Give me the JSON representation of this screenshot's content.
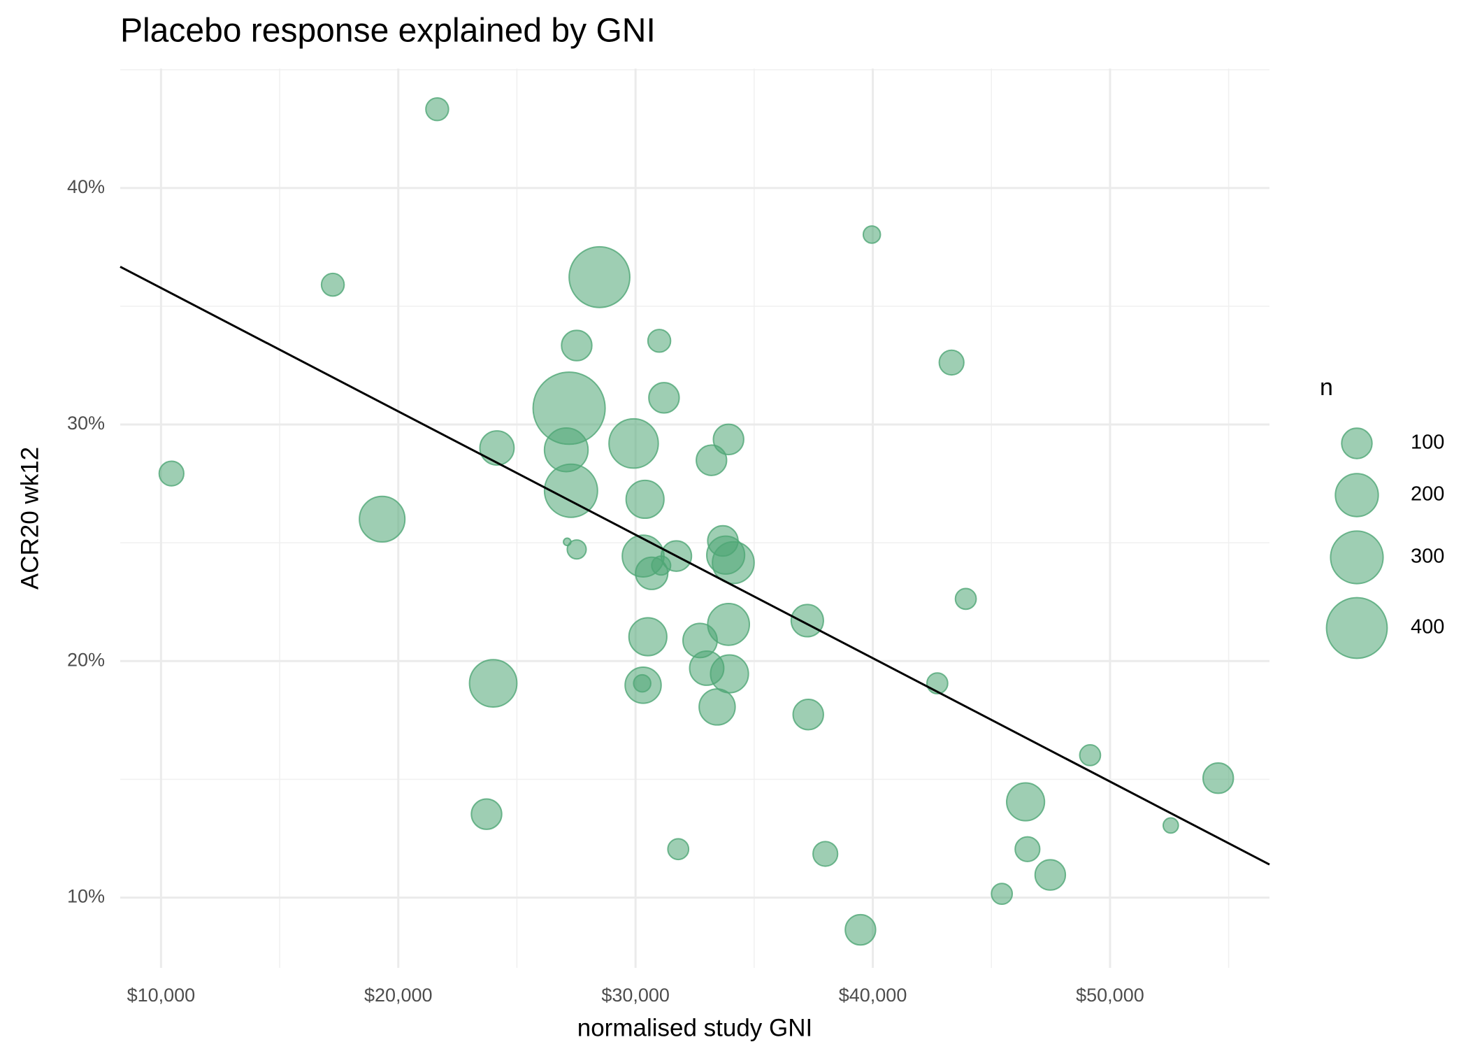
{
  "chart_data": {
    "type": "scatter",
    "title": "Placebo response explained by GNI",
    "x_label": "normalised study GNI",
    "y_label": "ACR20 wk12",
    "color": "#4fa675",
    "grid": true,
    "xlim": [
      8280,
      56720
    ],
    "ylim": [
      7.03,
      45.05
    ],
    "xticks": [
      {
        "value": 10000,
        "label": "$10,000"
      },
      {
        "value": 20000,
        "label": "$20,000"
      },
      {
        "value": 30000,
        "label": "$30,000"
      },
      {
        "value": 40000,
        "label": "$40,000"
      },
      {
        "value": 50000,
        "label": "$50,000"
      }
    ],
    "yticks": [
      {
        "value": 10,
        "label": "10%"
      },
      {
        "value": 20,
        "label": "20%"
      },
      {
        "value": 30,
        "label": "30%"
      },
      {
        "value": 40,
        "label": "40%"
      }
    ],
    "xminor_ticks": [
      15000,
      25000,
      35000,
      45000,
      55000
    ],
    "yminor_ticks": [
      15,
      25,
      35,
      45
    ],
    "x": [
      21640,
      17240,
      39960,
      28480,
      27520,
      31000,
      43320,
      27200,
      31200,
      29920,
      27080,
      24160,
      33920,
      33200,
      10440,
      27280,
      19320,
      30400,
      27120,
      27520,
      33680,
      30320,
      31720,
      30680,
      31080,
      33800,
      34120,
      43920,
      37240,
      33920,
      30520,
      32720,
      24000,
      33000,
      33960,
      30320,
      30280,
      42720,
      33440,
      37280,
      49160,
      54560,
      23720,
      46440,
      52560,
      31800,
      38000,
      46520,
      47480,
      45440,
      39480
    ],
    "values": [
      43.33,
      35.91,
      38.03,
      36.23,
      33.34,
      33.54,
      32.62,
      30.69,
      31.13,
      29.2,
      28.93,
      29.01,
      29.37,
      28.49,
      27.93,
      27.2,
      26.0,
      26.84,
      25.04,
      24.72,
      25.08,
      24.44,
      24.44,
      23.71,
      24.04,
      24.48,
      24.16,
      22.63,
      21.71,
      21.55,
      21.03,
      20.87,
      19.06,
      19.7,
      19.46,
      18.98,
      19.06,
      19.06,
      18.06,
      17.74,
      16.02,
      15.05,
      13.53,
      14.05,
      13.05,
      12.05,
      11.85,
      12.05,
      10.96,
      10.16,
      8.64
    ],
    "sizes": [
      56,
      56,
      32,
      400,
      100,
      56,
      66,
      564,
      100,
      264,
      207,
      127,
      100,
      100,
      66,
      306,
      225,
      156,
      6,
      39,
      100,
      189,
      100,
      113,
      39,
      156,
      189,
      47,
      113,
      189,
      156,
      127,
      244,
      127,
      156,
      141,
      32,
      47,
      141,
      100,
      47,
      100,
      100,
      156,
      25,
      47,
      66,
      66,
      100,
      47,
      100
    ],
    "size_legend": {
      "title": "n",
      "values": [
        100,
        200,
        300,
        400
      ]
    },
    "trend_line": {
      "x": [
        8280,
        56720
      ],
      "y": [
        36.67,
        11.4
      ]
    }
  }
}
